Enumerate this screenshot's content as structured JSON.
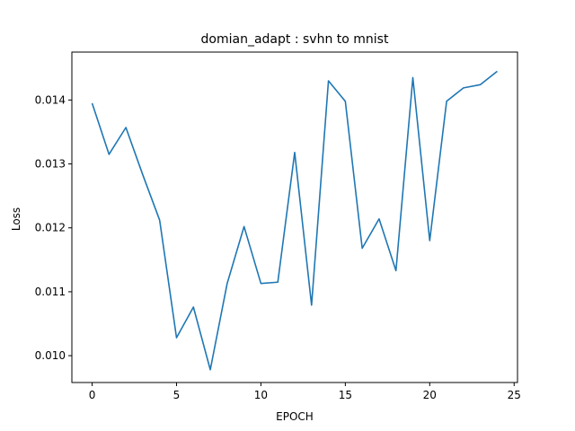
{
  "chart_data": {
    "type": "line",
    "title": "domian_adapt : svhn to mnist",
    "xlabel": "EPOCH",
    "ylabel": "Loss",
    "xlim": [
      -1.2,
      25.2
    ],
    "ylim": [
      0.00958,
      0.01475
    ],
    "xticks": [
      0,
      5,
      10,
      15,
      20,
      25
    ],
    "xtick_labels": [
      "0",
      "5",
      "10",
      "15",
      "20",
      "25"
    ],
    "yticks": [
      0.01,
      0.011,
      0.012,
      0.013,
      0.014
    ],
    "ytick_labels": [
      "0.010",
      "0.011",
      "0.012",
      "0.013",
      "0.014"
    ],
    "grid": false,
    "series": [
      {
        "color": "#1f77b4",
        "x": [
          0,
          1,
          2,
          3,
          4,
          5,
          6,
          7,
          8,
          9,
          10,
          11,
          12,
          13,
          14,
          15,
          16,
          17,
          18,
          19,
          20,
          21,
          22,
          23,
          24
        ],
        "y": [
          0.01395,
          0.01315,
          0.01357,
          0.01283,
          0.01212,
          0.01028,
          0.01076,
          0.00978,
          0.01113,
          0.01202,
          0.01113,
          0.01115,
          0.01318,
          0.01079,
          0.0143,
          0.01398,
          0.01168,
          0.01214,
          0.01133,
          0.01435,
          0.0118,
          0.01398,
          0.01419,
          0.01424,
          0.01445
        ]
      }
    ]
  }
}
